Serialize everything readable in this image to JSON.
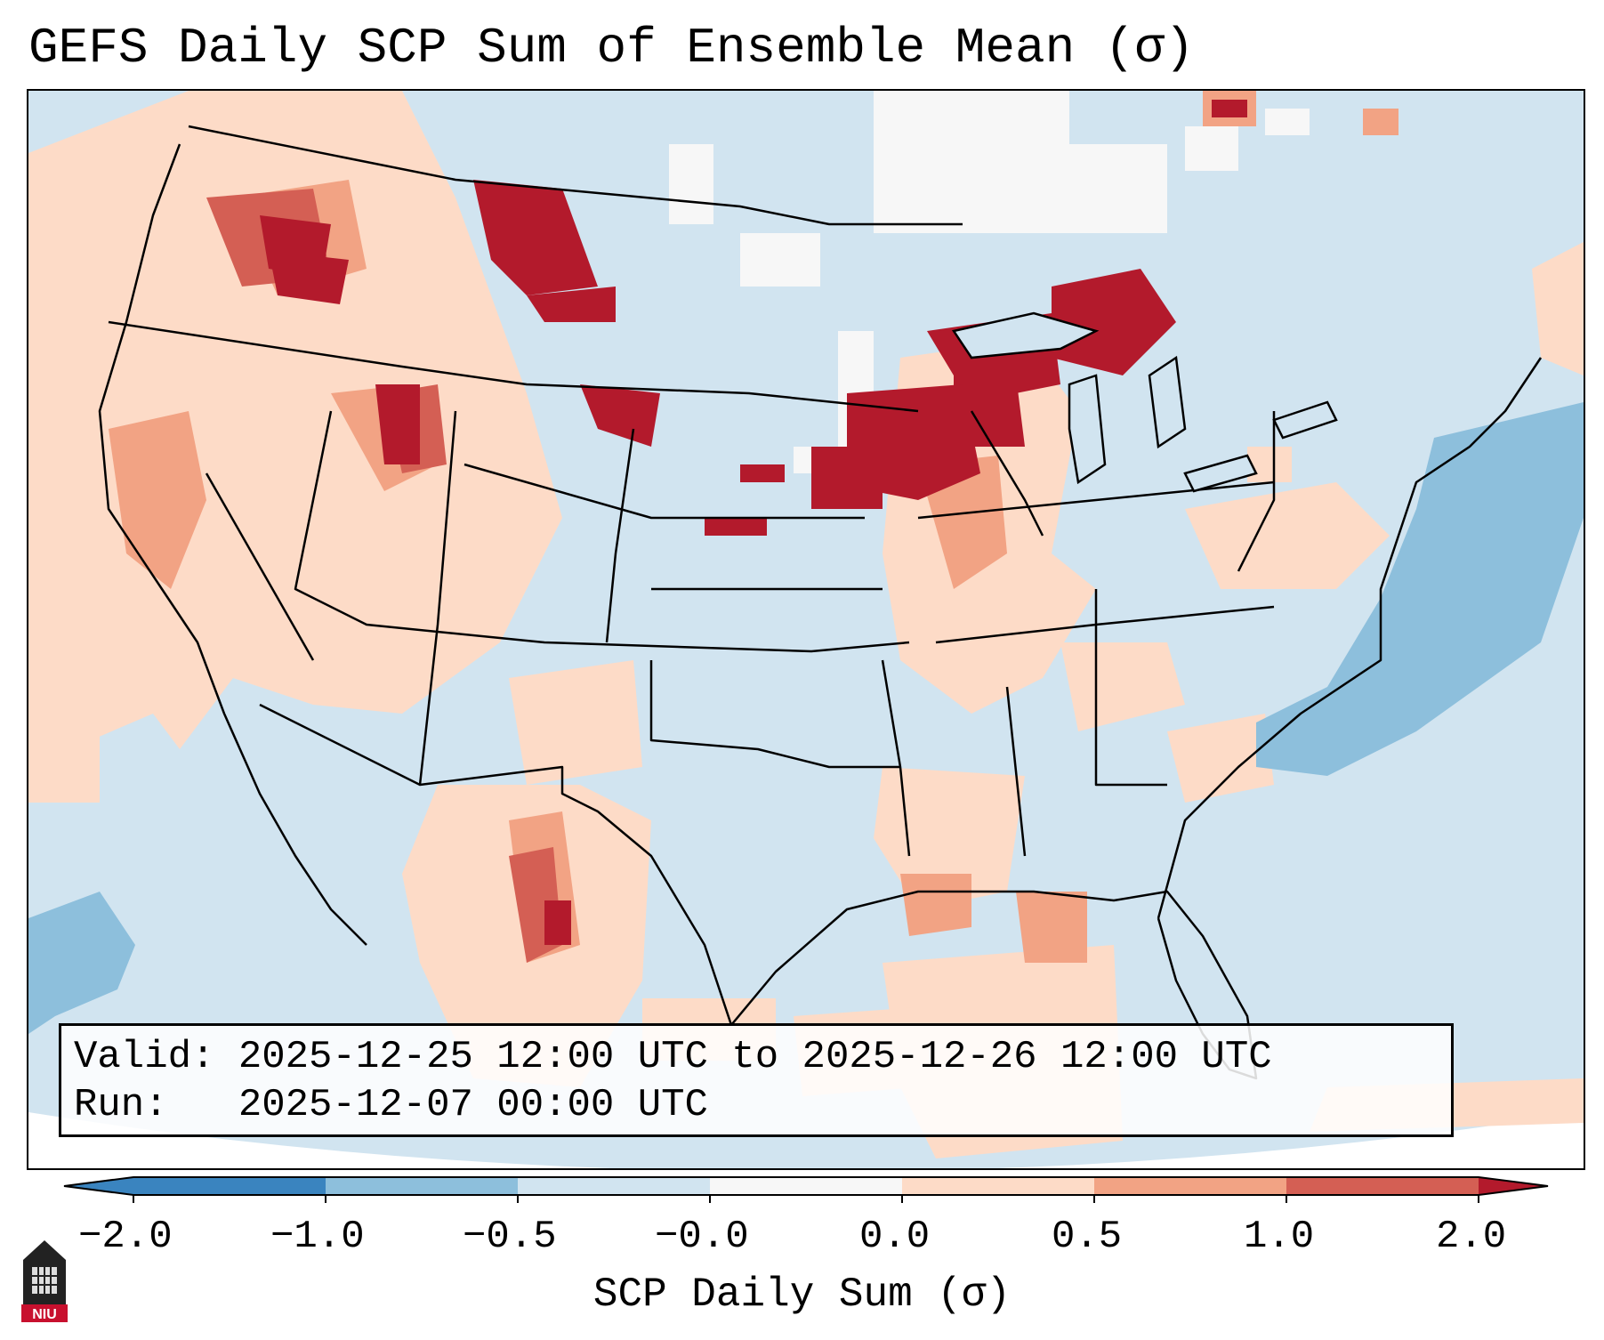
{
  "title": "GEFS Daily SCP Sum of Ensemble Mean (σ)",
  "info": {
    "valid_label": "Valid:",
    "valid_value": "2025-12-25 12:00 UTC to 2025-12-26 12:00 UTC",
    "run_label": "Run:",
    "run_value": "2025-12-07 00:00 UTC"
  },
  "colorbar": {
    "label": "SCP Daily Sum (σ)",
    "ticks": [
      "−2.0",
      "−1.0",
      "−0.5",
      "−0.0",
      "0.0",
      "0.5",
      "1.0",
      "2.0"
    ],
    "colors": [
      "#3a84bf",
      "#8dbfdc",
      "#d1e4f0",
      "#f7f7f7",
      "#fddbc7",
      "#f2a384",
      "#d45f54"
    ],
    "extend_low_color": "#3a84bf",
    "extend_high_color": "#b31a2c"
  },
  "map": {
    "background_color": "#d1e4f0",
    "outside_domain_color": "#ffffff",
    "region": "Contiguous United States",
    "projection": "Lambert Conformal"
  },
  "logo": {
    "text": "NIU",
    "logo_color": "#c8102e"
  }
}
